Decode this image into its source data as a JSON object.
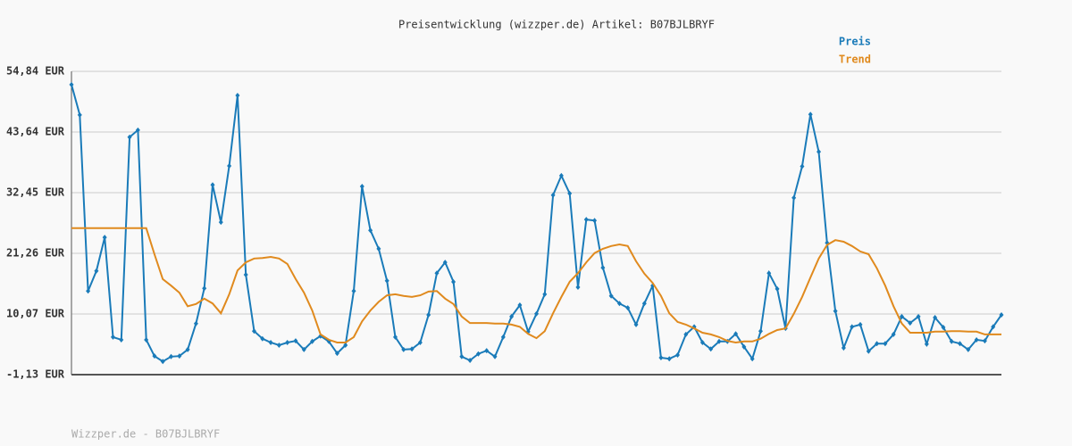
{
  "chart_data": {
    "type": "line",
    "title": "Preisentwicklung (wizzper.de) Artikel: B07BJLBRYF",
    "footer": "Wizzper.de - B07BJLBRYF",
    "legend": "top-right",
    "grid": true,
    "ylim": [
      -1.13,
      54.84
    ],
    "yticks": [
      {
        "value": -1.13,
        "label": "-1,13 EUR"
      },
      {
        "value": 10.07,
        "label": "10,07 EUR"
      },
      {
        "value": 21.26,
        "label": "21,26 EUR"
      },
      {
        "value": 32.45,
        "label": "32,45 EUR"
      },
      {
        "value": 43.64,
        "label": "43,64 EUR"
      },
      {
        "value": 54.84,
        "label": "54,84 EUR"
      }
    ],
    "series": [
      {
        "name": "Preis",
        "color": "#1a7bb9",
        "markers": true,
        "values": [
          52.4,
          46.8,
          14.3,
          18.0,
          24.2,
          5.8,
          5.3,
          42.7,
          44.0,
          5.3,
          2.3,
          1.3,
          2.2,
          2.3,
          3.5,
          8.3,
          14.8,
          33.9,
          27.0,
          37.4,
          50.4,
          17.3,
          6.9,
          5.5,
          4.8,
          4.3,
          4.8,
          5.1,
          3.5,
          5.0,
          6.0,
          5.0,
          2.8,
          4.3,
          14.3,
          33.6,
          25.5,
          22.1,
          16.2,
          5.8,
          3.5,
          3.6,
          4.8,
          9.9,
          17.6,
          19.6,
          16.0,
          2.2,
          1.5,
          2.7,
          3.3,
          2.2,
          5.8,
          9.6,
          11.7,
          6.8,
          10.1,
          13.7,
          32.0,
          35.6,
          32.3,
          15.0,
          27.5,
          27.3,
          18.6,
          13.4,
          12.0,
          11.2,
          8.1,
          12.0,
          15.3,
          2.0,
          1.8,
          2.5,
          6.3,
          7.7,
          4.8,
          3.6,
          5.0,
          5.0,
          6.4,
          4.0,
          1.8,
          6.9,
          17.6,
          14.7,
          7.4,
          31.5,
          37.3,
          46.9,
          40.0,
          23.2,
          10.6,
          3.8,
          7.7,
          8.1,
          3.2,
          4.6,
          4.6,
          6.3,
          9.6,
          8.4,
          9.6,
          4.5,
          9.4,
          7.6,
          5.0,
          4.6,
          3.5,
          5.3,
          5.1,
          7.7,
          9.9
        ]
      },
      {
        "name": "Trend",
        "color": "#e08a1e",
        "markers": false,
        "values": [
          25.9,
          25.9,
          25.9,
          25.9,
          25.9,
          25.9,
          25.9,
          25.9,
          25.9,
          25.9,
          21.1,
          16.5,
          15.3,
          14.0,
          11.5,
          11.9,
          12.9,
          12.0,
          10.2,
          13.7,
          18.1,
          19.6,
          20.3,
          20.4,
          20.6,
          20.3,
          19.3,
          16.5,
          14.0,
          10.7,
          6.3,
          5.3,
          4.8,
          4.8,
          5.8,
          8.7,
          10.7,
          12.3,
          13.5,
          13.7,
          13.4,
          13.2,
          13.5,
          14.2,
          14.3,
          12.9,
          11.9,
          9.6,
          8.4,
          8.4,
          8.4,
          8.3,
          8.3,
          8.1,
          7.7,
          6.4,
          5.6,
          6.9,
          10.2,
          13.2,
          16.0,
          17.6,
          19.6,
          21.3,
          22.1,
          22.6,
          22.9,
          22.6,
          19.8,
          17.5,
          15.8,
          13.4,
          10.2,
          8.6,
          8.1,
          7.4,
          6.6,
          6.3,
          5.8,
          5.1,
          4.8,
          5.0,
          5.0,
          5.5,
          6.4,
          7.1,
          7.4,
          10.1,
          13.2,
          16.8,
          20.3,
          22.8,
          23.7,
          23.4,
          22.6,
          21.6,
          21.1,
          18.5,
          15.3,
          11.5,
          8.3,
          6.6,
          6.6,
          6.6,
          6.8,
          6.8,
          6.9,
          6.9,
          6.8,
          6.8,
          6.3,
          6.3,
          6.3
        ]
      }
    ]
  }
}
